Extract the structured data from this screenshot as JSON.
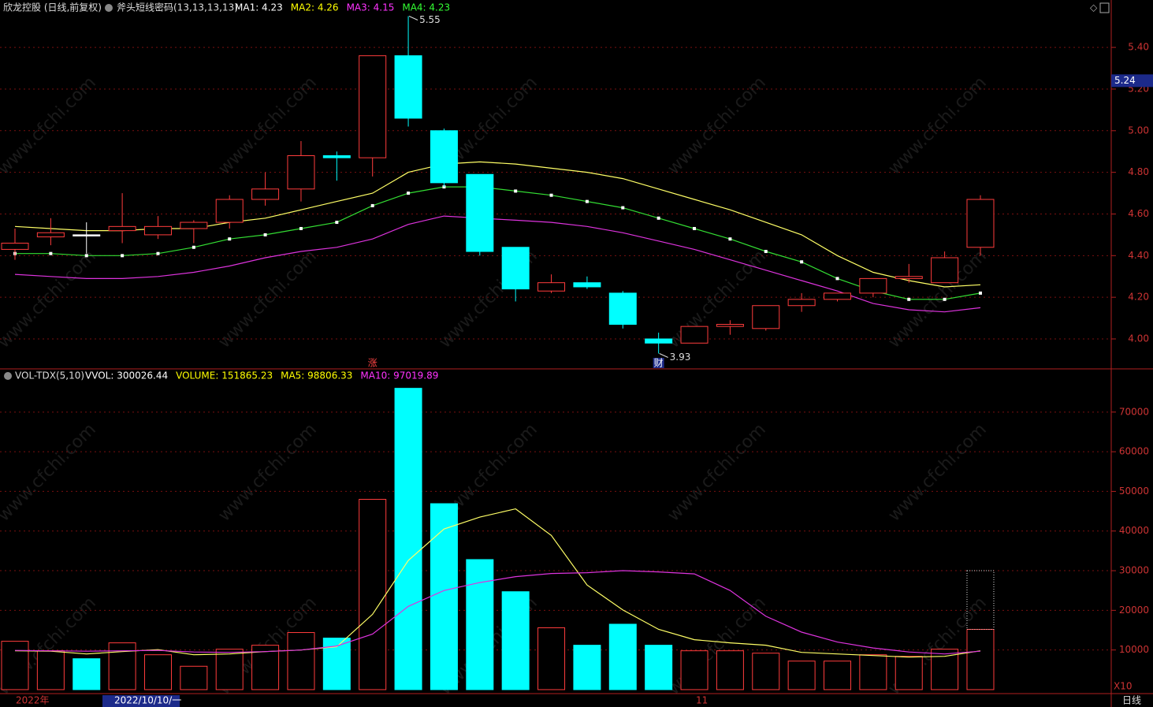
{
  "chart_data": [
    {
      "type": "candlestick",
      "title": "欣龙控股 (日线,前复权)",
      "indicator": "斧头短线密码(13,13,13,13)",
      "legend": [
        {
          "text": "MA1: 4.23",
          "color": "#ffffff"
        },
        {
          "text": "MA2: 4.26",
          "color": "#ffff00"
        },
        {
          "text": "MA3: 4.15",
          "color": "#ff33ff"
        },
        {
          "text": "MA4: 4.23",
          "color": "#33ff33"
        }
      ],
      "open": [
        4.43,
        4.49,
        4.5,
        4.52,
        4.5,
        4.53,
        4.56,
        4.67,
        4.72,
        4.88,
        4.87,
        5.36,
        5.0,
        4.79,
        4.44,
        4.23,
        4.27,
        4.22,
        4.0,
        3.98,
        4.06,
        4.05,
        4.16,
        4.19,
        4.22,
        4.29,
        4.27,
        4.44
      ],
      "high": [
        4.53,
        4.58,
        4.56,
        4.7,
        4.59,
        4.57,
        4.69,
        4.8,
        4.95,
        4.9,
        5.36,
        5.55,
        5.01,
        4.79,
        4.44,
        4.31,
        4.3,
        4.23,
        4.03,
        4.06,
        4.09,
        4.16,
        4.22,
        4.22,
        4.29,
        4.36,
        4.42,
        4.69
      ],
      "low": [
        4.38,
        4.45,
        4.41,
        4.46,
        4.48,
        4.46,
        4.53,
        4.64,
        4.66,
        4.76,
        4.78,
        5.02,
        4.73,
        4.4,
        4.18,
        4.22,
        4.24,
        4.05,
        3.93,
        3.98,
        4.02,
        4.04,
        4.13,
        4.18,
        4.2,
        4.27,
        4.27,
        4.4
      ],
      "close": [
        4.46,
        4.51,
        4.5,
        4.54,
        4.54,
        4.56,
        4.67,
        4.72,
        4.88,
        4.87,
        5.36,
        5.06,
        4.75,
        4.42,
        4.24,
        4.27,
        4.25,
        4.07,
        3.98,
        4.06,
        4.07,
        4.16,
        4.19,
        4.22,
        4.29,
        4.3,
        4.39,
        4.67
      ],
      "series": [
        {
          "color": "#ffff66",
          "values": [
            4.54,
            4.53,
            4.52,
            4.52,
            4.53,
            4.53,
            4.56,
            4.58,
            4.62,
            4.66,
            4.7,
            4.8,
            4.84,
            4.85,
            4.84,
            4.82,
            4.8,
            4.77,
            4.72,
            4.67,
            4.62,
            4.56,
            4.5,
            4.4,
            4.32,
            4.28,
            4.25,
            4.26
          ]
        },
        {
          "color": "#33dd33",
          "values": [
            4.41,
            4.41,
            4.4,
            4.4,
            4.41,
            4.44,
            4.48,
            4.5,
            4.53,
            4.56,
            4.64,
            4.7,
            4.73,
            4.73,
            4.71,
            4.69,
            4.66,
            4.63,
            4.58,
            4.53,
            4.48,
            4.42,
            4.37,
            4.29,
            4.23,
            4.19,
            4.19,
            4.22
          ]
        },
        {
          "color": "#dd33dd",
          "values": [
            4.31,
            4.3,
            4.29,
            4.29,
            4.3,
            4.32,
            4.35,
            4.39,
            4.42,
            4.44,
            4.48,
            4.55,
            4.59,
            4.58,
            4.57,
            4.56,
            4.54,
            4.51,
            4.47,
            4.43,
            4.38,
            4.33,
            4.28,
            4.23,
            4.17,
            4.14,
            4.13,
            4.15
          ]
        }
      ],
      "ylim": [
        3.86,
        5.62
      ],
      "yticks": [
        {
          "value": 4.0,
          "label": "4.00"
        },
        {
          "value": 4.2,
          "label": "4.20"
        },
        {
          "value": 4.4,
          "label": "4.40"
        },
        {
          "value": 4.6,
          "label": "4.60"
        },
        {
          "value": 4.8,
          "label": "4.80"
        },
        {
          "value": 5.0,
          "label": "5.00"
        },
        {
          "value": 5.2,
          "label": "5.20"
        },
        {
          "value": 5.4,
          "label": "5.40"
        }
      ],
      "markers": [
        "涨",
        "财"
      ],
      "price_marker": 5.24,
      "grid": true
    },
    {
      "type": "volume",
      "title": "VOL-TDX(5,10)",
      "legend": [
        {
          "text": "VVOL: 300026.44",
          "color": "#ffffff"
        },
        {
          "text": "VOLUME: 151865.23",
          "color": "#ffff00"
        },
        {
          "text": "MA5: 98806.33",
          "color": "#ffff00"
        },
        {
          "text": "MA10: 97019.89",
          "color": "#ff33ff"
        }
      ],
      "values": [
        12200,
        9800,
        7800,
        11800,
        8800,
        5900,
        10200,
        11200,
        14400,
        13000,
        48000,
        76000,
        46900,
        32800,
        24700,
        15600,
        11200,
        16500,
        11200,
        9800,
        9800,
        9200,
        7200,
        7200,
        8800,
        8400,
        10200,
        15200
      ],
      "colors": [
        "#ff3c3c",
        "#ff3c3c",
        "#00ffff",
        "#ff3c3c",
        "#ff3c3c",
        "#ff3c3c",
        "#ff3c3c",
        "#ff3c3c",
        "#ff3c3c",
        "#00ffff",
        "#ff3c3c",
        "#00ffff",
        "#00ffff",
        "#00ffff",
        "#00ffff",
        "#ff3c3c",
        "#00ffff",
        "#00ffff",
        "#00ffff",
        "#ff3c3c",
        "#ff3c3c",
        "#ff3c3c",
        "#ff3c3c",
        "#ff3c3c",
        "#ff3c3c",
        "#ff3c3c",
        "#ff3c3c",
        "#ff3c3c"
      ],
      "projected": 30000,
      "series": [
        {
          "color": "#ffff66",
          "values": [
            9800,
            9700,
            9000,
            9600,
            10100,
            8800,
            9000,
            9600,
            10000,
            10800,
            19000,
            32600,
            40500,
            43500,
            45600,
            38900,
            26400,
            20100,
            15200,
            12600,
            11800,
            11200,
            9400,
            9000,
            8600,
            8200,
            8400,
            9800
          ]
        },
        {
          "color": "#dd33dd",
          "values": [
            9900,
            9800,
            9700,
            9800,
            9900,
            9500,
            9400,
            9600,
            10000,
            11000,
            14000,
            21000,
            25000,
            27000,
            28500,
            29300,
            29500,
            30000,
            29700,
            29200,
            25000,
            18500,
            14500,
            12000,
            10500,
            9500,
            9000,
            9700
          ]
        }
      ],
      "ylim": [
        -1000,
        80500
      ],
      "yticks": [
        10000,
        20000,
        30000,
        40000,
        50000,
        60000,
        70000
      ],
      "unit_label": "X10",
      "grid": true
    }
  ],
  "footer": {
    "labels": [
      "2022年",
      "2022/10/10/一",
      "11"
    ],
    "period": "日线"
  },
  "watermark": "www.cfchi.com"
}
